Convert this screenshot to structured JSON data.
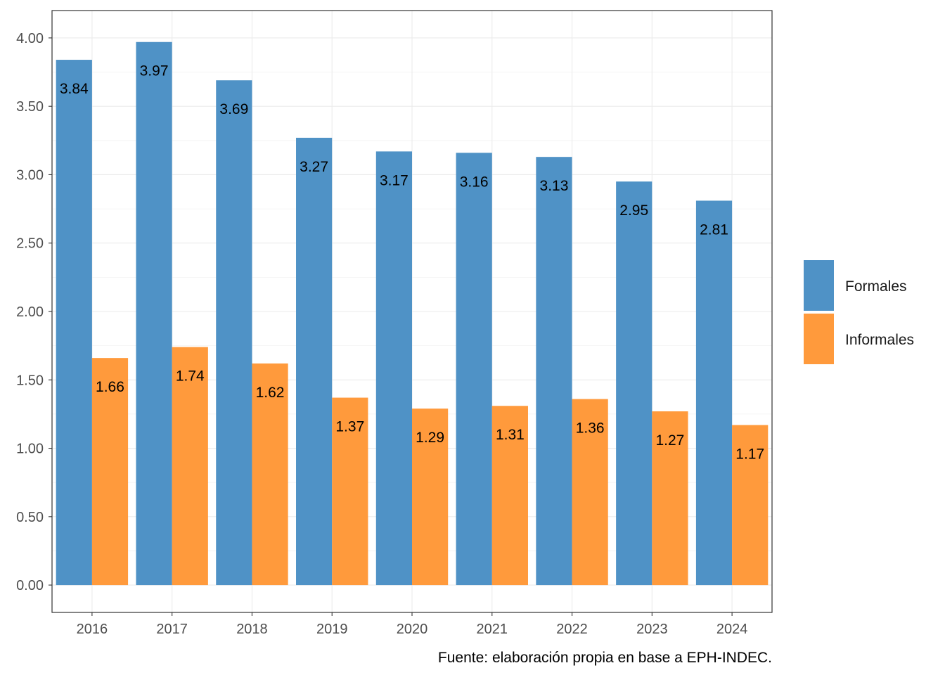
{
  "chart_data": {
    "type": "bar",
    "categories": [
      "2016",
      "2017",
      "2018",
      "2019",
      "2020",
      "2021",
      "2022",
      "2023",
      "2024"
    ],
    "series": [
      {
        "name": "Formales",
        "color": "#4f92c6",
        "values": [
          3.84,
          3.97,
          3.69,
          3.27,
          3.17,
          3.16,
          3.13,
          2.95,
          2.81
        ]
      },
      {
        "name": "Informales",
        "color": "#ff9a3c",
        "values": [
          1.66,
          1.74,
          1.62,
          1.37,
          1.29,
          1.31,
          1.36,
          1.27,
          1.17
        ]
      }
    ],
    "data_labels": [
      [
        "3.84",
        "3.97",
        "3.69",
        "3.27",
        "3.17",
        "3.16",
        "3.13",
        "2.95",
        "2.81"
      ],
      [
        "1.66",
        "1.74",
        "1.62",
        "1.37",
        "1.29",
        "1.31",
        "1.36",
        "1.27",
        "1.17"
      ]
    ],
    "y_ticks": [
      "0.00",
      "0.50",
      "1.00",
      "1.50",
      "2.00",
      "2.50",
      "3.00",
      "3.50",
      "4.00"
    ],
    "ylim": [
      -0.2,
      4.2
    ],
    "xlabel": "",
    "ylabel": "",
    "grid": true,
    "legend_position": "right",
    "caption": "Fuente: elaboración propia en base a EPH-INDEC."
  }
}
